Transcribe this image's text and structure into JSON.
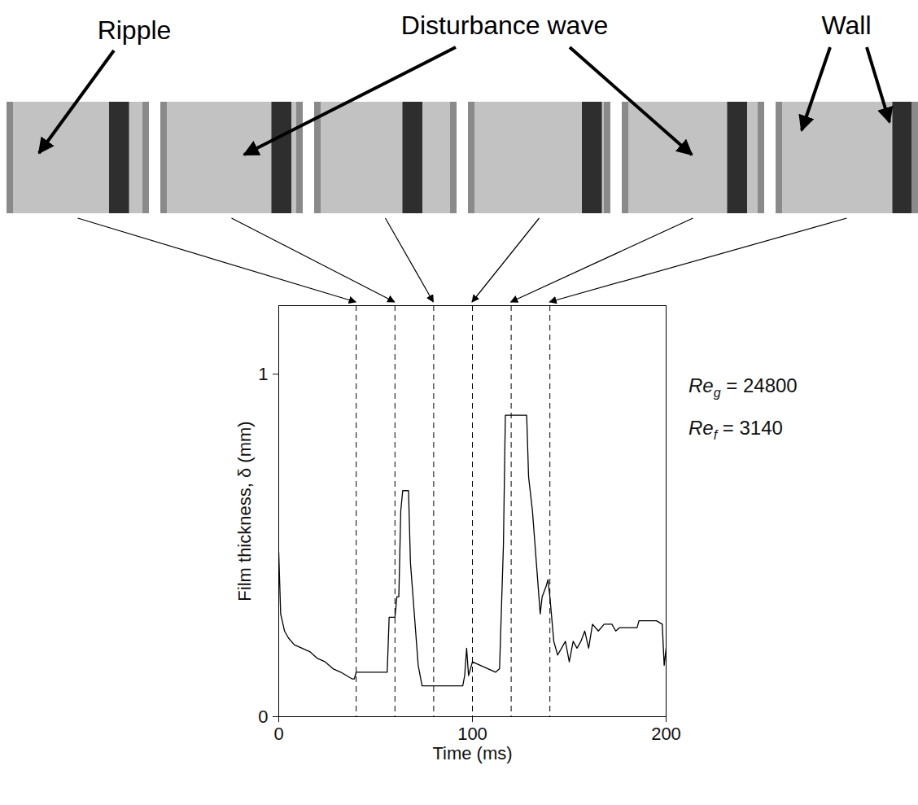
{
  "chart_data": {
    "type": "line",
    "x_label": "Time (ms)",
    "y_label": "Film thickness, δ (mm)",
    "xlim": [
      0,
      200
    ],
    "xticks": [
      0,
      100,
      200
    ],
    "ylim": [
      0,
      1.2
    ],
    "yticks": [
      0,
      1
    ],
    "color": "#000000",
    "line_style": "solid",
    "x": [
      0,
      1,
      3,
      5,
      8,
      12,
      16,
      20,
      24,
      28,
      32,
      35,
      38,
      39,
      40,
      56,
      57,
      60,
      61,
      62,
      63,
      64,
      67,
      68,
      70,
      72,
      74,
      78,
      95,
      96,
      97,
      98,
      100,
      104,
      108,
      112,
      114,
      116,
      117,
      128,
      129,
      131,
      133,
      135,
      136,
      138,
      139,
      140,
      142,
      144,
      146,
      148,
      150,
      152,
      154,
      156,
      158,
      160,
      162,
      165,
      168,
      172,
      174,
      176,
      185,
      186,
      190,
      195,
      198,
      199,
      200
    ],
    "values": [
      0.48,
      0.3,
      0.25,
      0.23,
      0.21,
      0.2,
      0.19,
      0.17,
      0.16,
      0.14,
      0.13,
      0.12,
      0.11,
      0.11,
      0.13,
      0.13,
      0.29,
      0.29,
      0.35,
      0.35,
      0.6,
      0.66,
      0.66,
      0.45,
      0.3,
      0.15,
      0.09,
      0.09,
      0.09,
      0.12,
      0.2,
      0.12,
      0.16,
      0.15,
      0.14,
      0.13,
      0.14,
      0.5,
      0.88,
      0.88,
      0.7,
      0.6,
      0.45,
      0.3,
      0.35,
      0.38,
      0.4,
      0.35,
      0.22,
      0.18,
      0.2,
      0.22,
      0.16,
      0.22,
      0.2,
      0.22,
      0.25,
      0.2,
      0.27,
      0.25,
      0.27,
      0.27,
      0.25,
      0.26,
      0.26,
      0.28,
      0.28,
      0.28,
      0.27,
      0.15,
      0.2
    ],
    "snapshot_times": [
      40,
      60,
      80,
      100,
      120,
      140
    ],
    "annotations": [
      {
        "text": "Re",
        "subscript": "g",
        "suffix": " = 24800"
      },
      {
        "text": "Re",
        "subscript": "f",
        "suffix": " = 3140"
      }
    ],
    "image_labels": [
      "Ripple",
      "Disturbance wave",
      "Wall"
    ]
  }
}
